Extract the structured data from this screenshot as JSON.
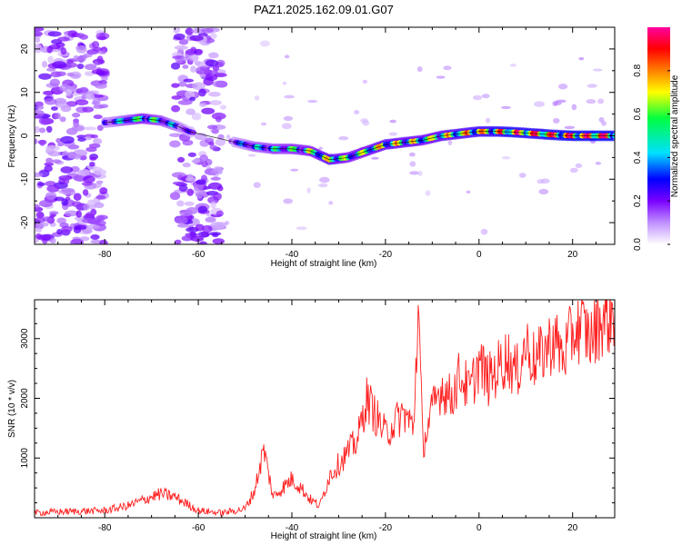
{
  "title": "PAZ1.2025.162.09.01.G07",
  "chart_data": [
    {
      "type": "heatmap",
      "xlabel": "Height of straight line (km)",
      "ylabel": "Frequency (Hz)",
      "xlim": [
        -95,
        29
      ],
      "ylim": [
        -25,
        25
      ],
      "x_ticks": [
        -80,
        -60,
        -40,
        -20,
        0,
        20
      ],
      "y_ticks": [
        -20,
        -10,
        0,
        10,
        20
      ],
      "colorbar": {
        "label": "Normalized spectral amplitude",
        "range": [
          0,
          1
        ],
        "ticks": [
          0.0,
          0.2,
          0.4,
          0.6,
          0.8
        ],
        "colormap": [
          "#ffffff",
          "#c090ff",
          "#7a00ff",
          "#0000ff",
          "#00e0ff",
          "#00ff40",
          "#ffff00",
          "#ff8000",
          "#ff0000",
          "#ff00a0"
        ]
      },
      "ridge": {
        "x": [
          -80,
          -76,
          -72,
          -68,
          -64,
          -62,
          -52,
          -48,
          -44,
          -40,
          -36,
          -32,
          -28,
          -24,
          -20,
          -16,
          -12,
          -8,
          -4,
          0,
          4,
          8,
          12,
          16,
          20,
          24,
          29
        ],
        "y": [
          3,
          3.5,
          4,
          3.5,
          2,
          1,
          -1.5,
          -2.5,
          -3,
          -3,
          -3.5,
          -5.5,
          -5,
          -3.5,
          -2,
          -1.5,
          -1,
          0,
          0.5,
          1,
          1,
          0.8,
          0.5,
          0.2,
          0,
          0,
          0
        ],
        "amplitude": [
          0.3,
          0.45,
          0.6,
          0.5,
          0.35,
          0.25,
          0.3,
          0.45,
          0.5,
          0.55,
          0.6,
          0.75,
          0.6,
          0.65,
          0.7,
          0.7,
          0.65,
          0.7,
          0.75,
          0.8,
          0.85,
          0.9,
          0.85,
          0.9,
          0.95,
          0.95,
          0.95
        ]
      },
      "noise_bands": [
        {
          "x_range": [
            -95,
            -80
          ],
          "amplitude": 0.15
        },
        {
          "x_range": [
            -65,
            -55
          ],
          "amplitude": 0.15
        }
      ]
    },
    {
      "type": "line",
      "xlabel": "Height of straight line (km)",
      "ylabel": "SNR (10 * v/v)",
      "xlim": [
        -95,
        29
      ],
      "ylim": [
        0,
        3650
      ],
      "x_ticks": [
        -80,
        -60,
        -40,
        -20,
        0,
        20
      ],
      "y_ticks": [
        1000,
        2000,
        3000
      ],
      "color": "#ff2020",
      "series": [
        {
          "x": [
            -95,
            -90,
            -85,
            -80,
            -75,
            -70,
            -68,
            -65,
            -60,
            -55,
            -50,
            -48,
            -46,
            -44,
            -42,
            -40,
            -38,
            -36,
            -34,
            -32,
            -30,
            -28,
            -26,
            -24,
            -22,
            -20,
            -18,
            -16,
            -14,
            -13,
            -12,
            -10,
            -8,
            -6,
            -4,
            -2,
            0,
            2,
            4,
            6,
            8,
            10,
            12,
            14,
            16,
            18,
            20,
            22,
            24,
            26,
            28,
            29
          ],
          "y": [
            80,
            100,
            110,
            120,
            200,
            350,
            400,
            350,
            120,
            80,
            150,
            450,
            1150,
            350,
            500,
            650,
            500,
            300,
            200,
            700,
            900,
            1100,
            1300,
            2000,
            1700,
            1400,
            1600,
            1750,
            1500,
            3550,
            1200,
            1800,
            2200,
            2000,
            2400,
            2100,
            2600,
            2300,
            2500,
            2700,
            2400,
            2900,
            2600,
            2800,
            3000,
            2700,
            3100,
            3200,
            3000,
            3300,
            3350,
            3450
          ]
        }
      ]
    }
  ]
}
